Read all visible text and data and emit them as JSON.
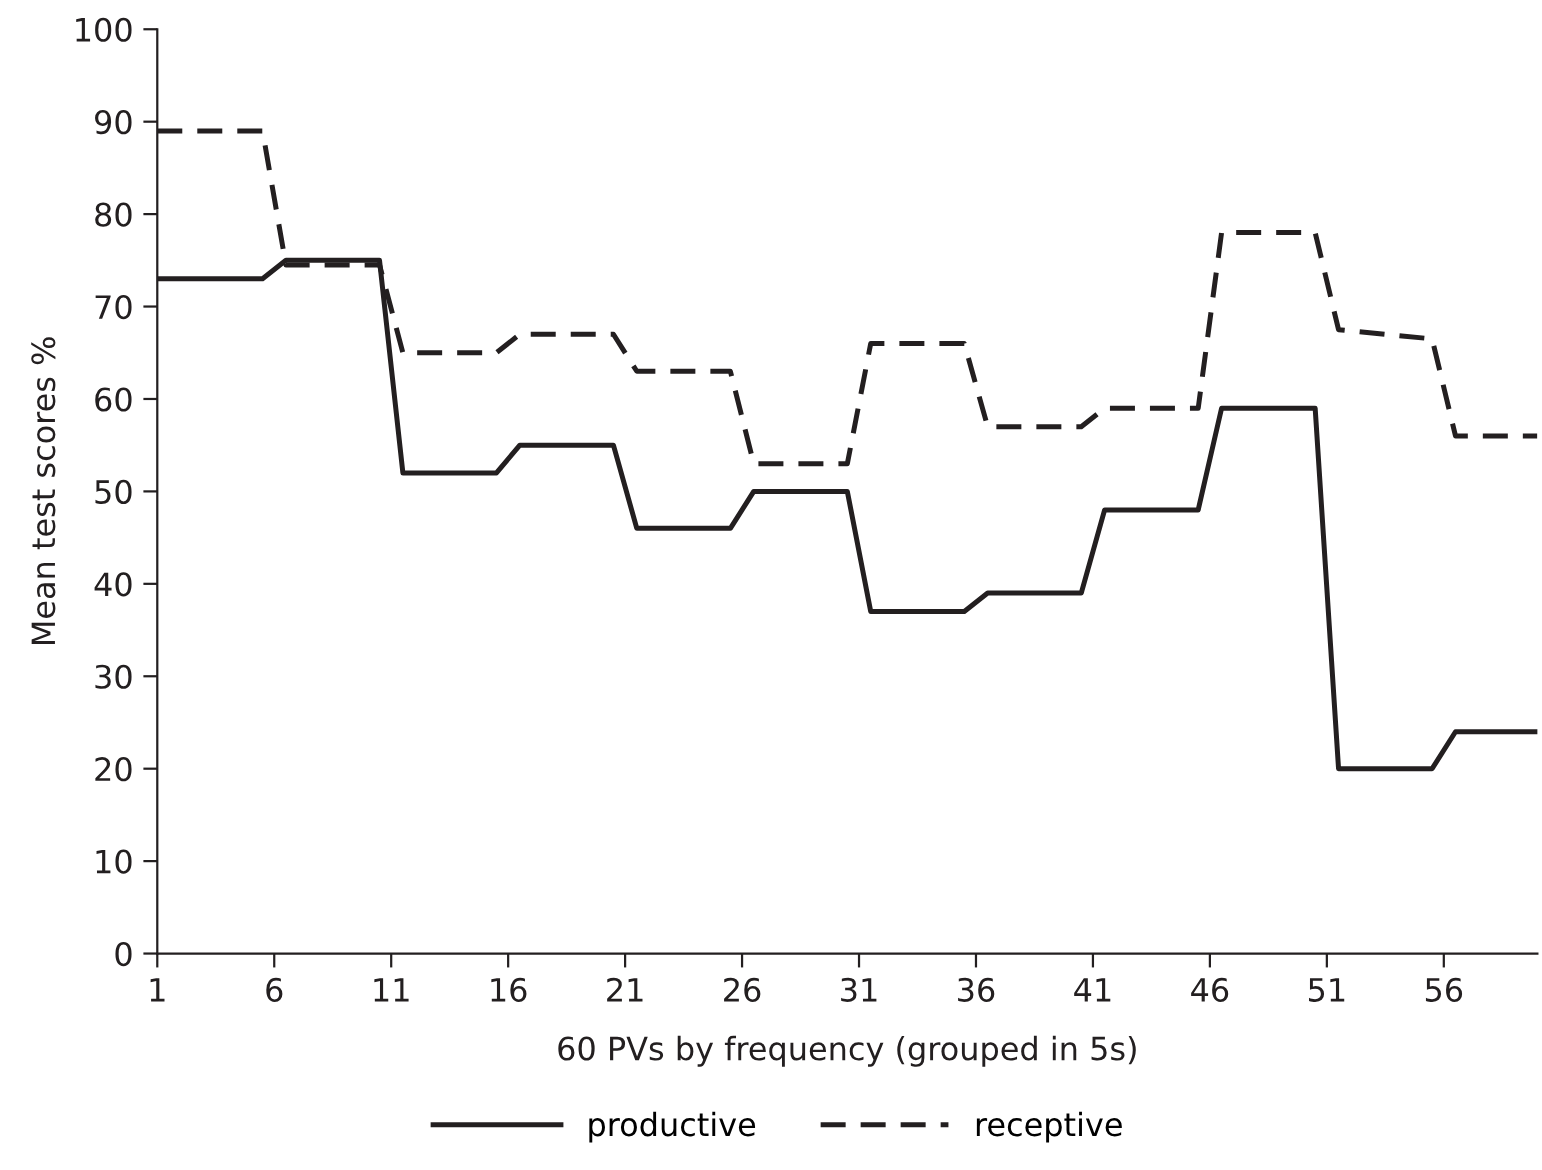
{
  "chart_data": {
    "type": "line",
    "xlabel": "60 PVs by frequency (grouped in 5s)",
    "ylabel": "Mean test scores %",
    "xlim": [
      1,
      60
    ],
    "xticks": [
      1,
      6,
      11,
      16,
      21,
      26,
      31,
      36,
      41,
      46,
      51,
      56
    ],
    "ylim": [
      0,
      100
    ],
    "yticks": [
      0,
      10,
      20,
      30,
      40,
      50,
      60,
      70,
      80,
      90,
      100
    ],
    "grid": false,
    "legend": "bottom",
    "marker": "none",
    "series": [
      {
        "name": "productive",
        "color": "#231f20",
        "line_style": "solid",
        "x": [
          1,
          5.5,
          6.5,
          10.5,
          11.5,
          15.5,
          16.5,
          20.5,
          21.5,
          25.5,
          26.5,
          30.5,
          31.5,
          35.5,
          36.5,
          40.5,
          41.5,
          45.5,
          46.5,
          50.5,
          51.5,
          55.5,
          56.5,
          60
        ],
        "values": [
          73,
          73,
          75,
          75,
          52,
          52,
          55,
          55,
          46,
          46,
          50,
          50,
          37,
          37,
          39,
          39,
          48,
          48,
          59,
          59,
          20,
          20,
          24,
          24
        ]
      },
      {
        "name": "receptive",
        "color": "#231f20",
        "line_style": "dashed",
        "x": [
          1,
          5.5,
          6.5,
          10.5,
          11.5,
          15.5,
          16.5,
          20.5,
          21.5,
          25.5,
          26.5,
          30.5,
          31.5,
          35.5,
          36.5,
          40.5,
          41.5,
          45.5,
          46.5,
          50.5,
          51.5,
          55.5,
          56.5,
          60
        ],
        "values": [
          89,
          89,
          74.5,
          74.5,
          65,
          65,
          67,
          67,
          63,
          63,
          53,
          53,
          66,
          66,
          57,
          57,
          59,
          59,
          78,
          78,
          67.5,
          66.5,
          56,
          56
        ]
      }
    ]
  }
}
